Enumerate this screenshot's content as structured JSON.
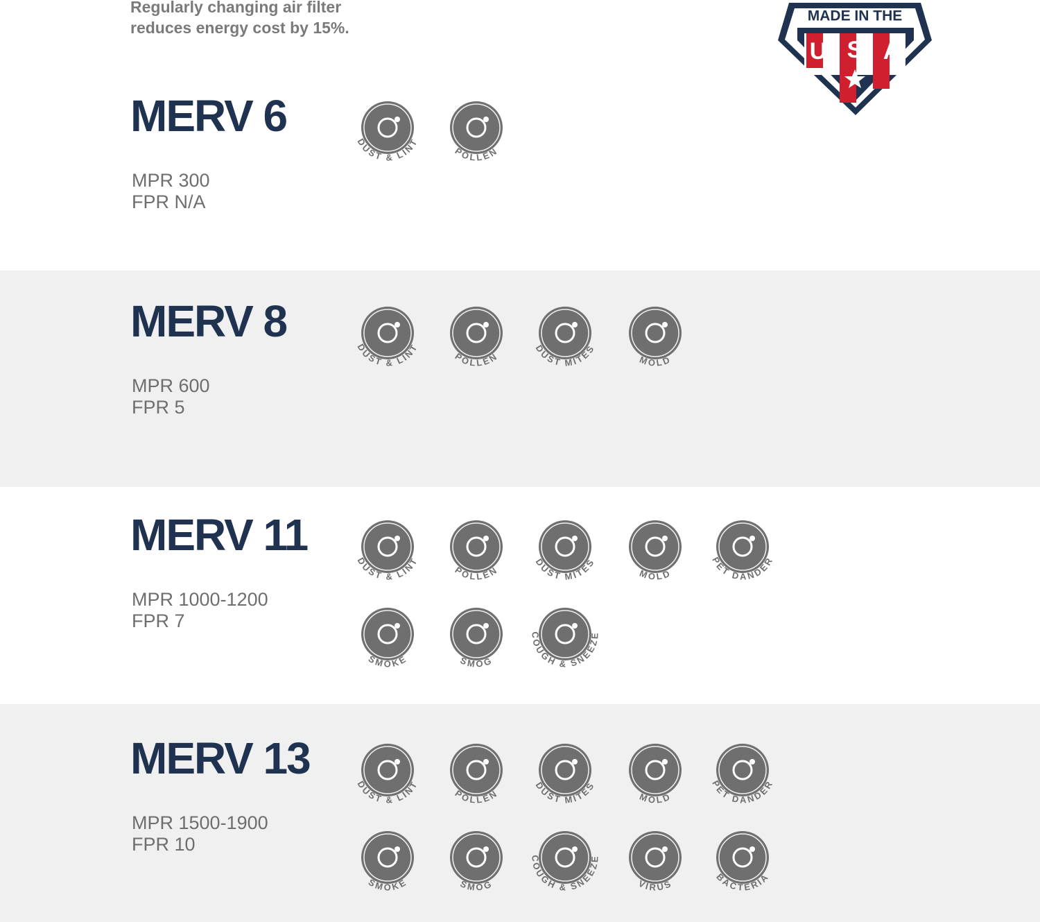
{
  "intro": {
    "lines": [
      "Regularly changing air filter",
      "reduces energy cost by 15%."
    ]
  },
  "badge": {
    "title": "MADE IN THE",
    "letters": [
      "U",
      "S",
      "A"
    ]
  },
  "sections": [
    {
      "title": "MERV 6",
      "mpr": "MPR 300",
      "fpr": "FPR N/A",
      "icons": [
        "DUST & LINT",
        "POLLEN"
      ]
    },
    {
      "title": "MERV 8",
      "mpr": "MPR 600",
      "fpr": "FPR 5",
      "icons": [
        "DUST & LINT",
        "POLLEN",
        "DUST MITES",
        "MOLD"
      ]
    },
    {
      "title": "MERV 11",
      "mpr": "MPR 1000-1200",
      "fpr": "FPR 7",
      "icons": [
        "DUST & LINT",
        "POLLEN",
        "DUST MITES",
        "MOLD",
        "PET DANDER",
        "SMOKE",
        "SMOG",
        "COUGH & SNEEZE"
      ]
    },
    {
      "title": "MERV 13",
      "mpr": "MPR 1500-1900",
      "fpr": "FPR 10",
      "icons": [
        "DUST & LINT",
        "POLLEN",
        "DUST MITES",
        "MOLD",
        "PET DANDER",
        "SMOKE",
        "SMOG",
        "COUGH & SNEEZE",
        "VIRUS",
        "BACTERIA"
      ]
    }
  ]
}
